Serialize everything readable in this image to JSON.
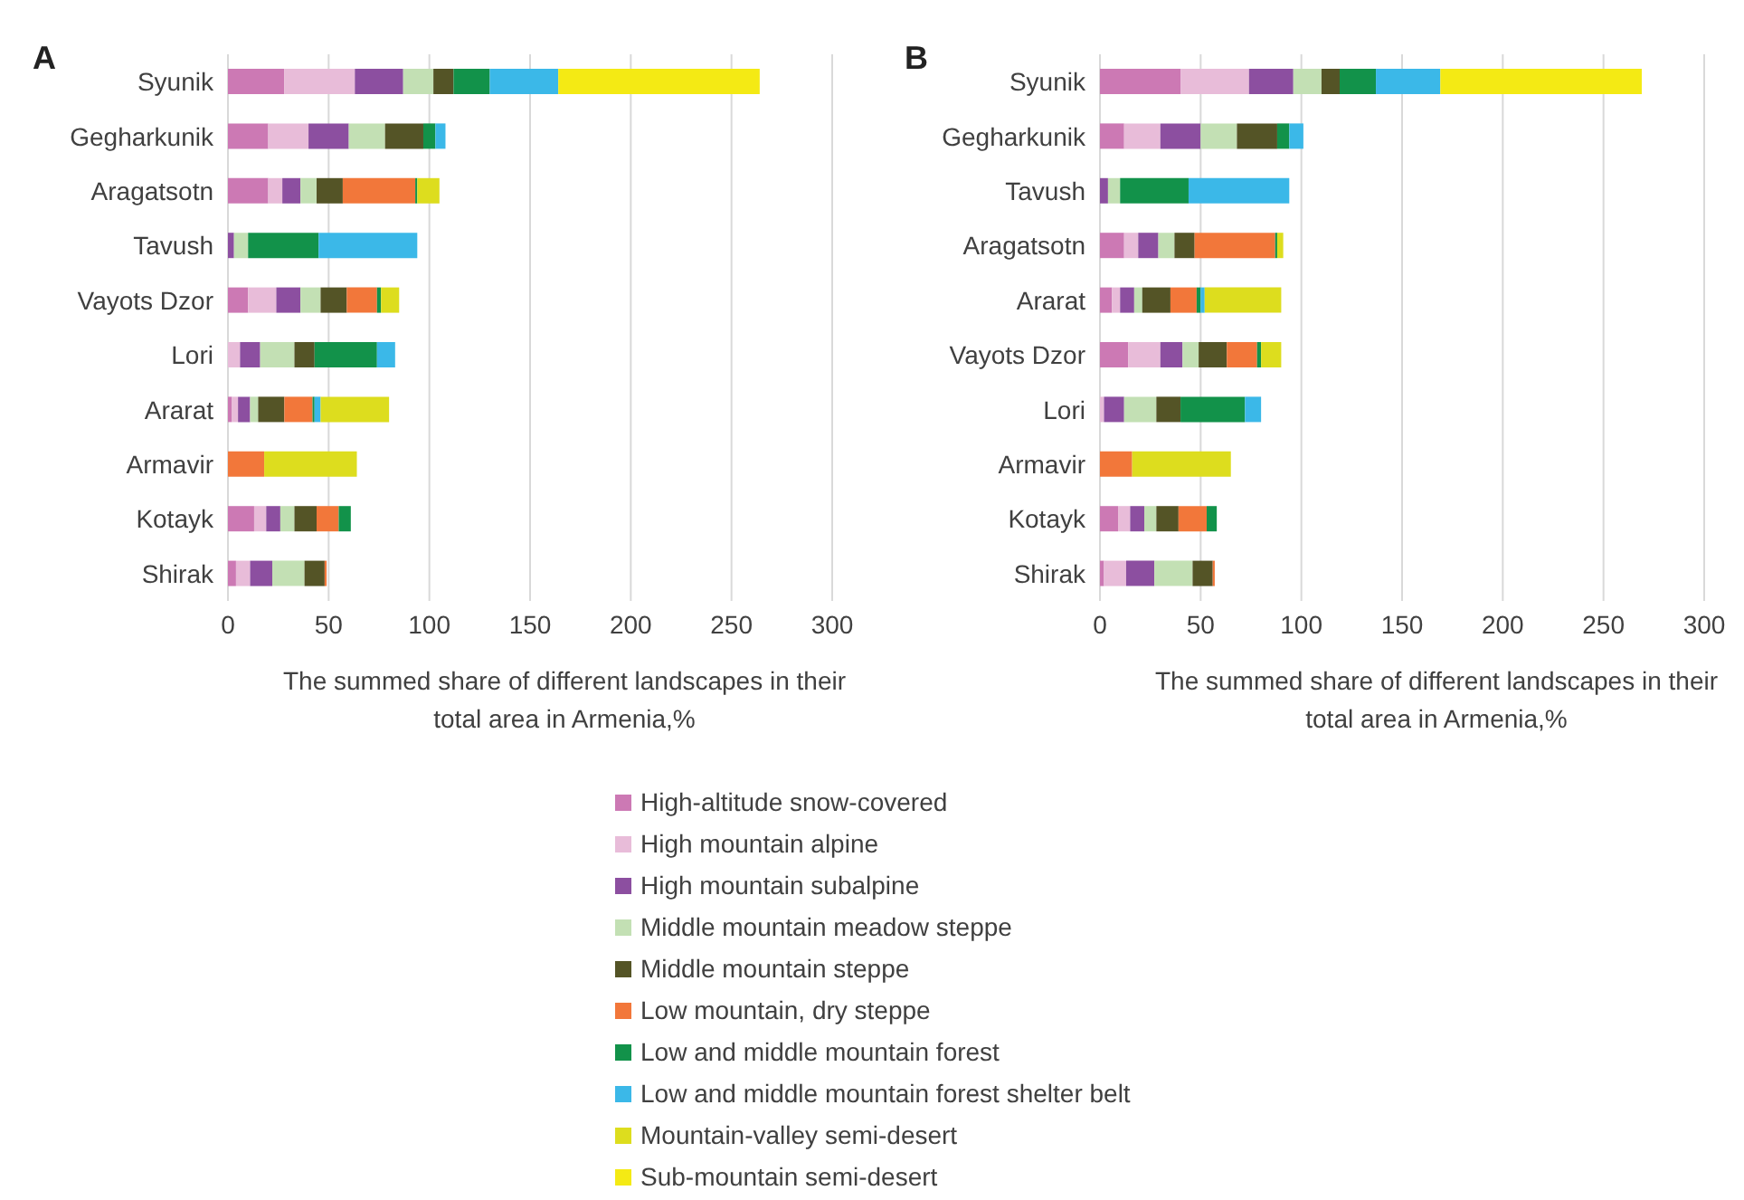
{
  "chart_data": [
    {
      "type": "bar",
      "title": "A",
      "orientation": "horizontal",
      "stacked": true,
      "xlabel": "The summed share of different landscapes in their total area in Armenia,%",
      "categories": [
        "Syunik",
        "Gegharkunik",
        "Aragatsotn",
        "Tavush",
        "Vayots Dzor",
        "Lori",
        "Ararat",
        "Armavir",
        "Kotayk",
        "Shirak"
      ],
      "xlim": [
        0,
        300
      ],
      "xticks": [
        0,
        50,
        100,
        150,
        200,
        250,
        300
      ],
      "grid": "x",
      "legend": "bottom",
      "series": [
        {
          "name": "High-altitude snow-covered",
          "color": "#cc79b4",
          "values": [
            28,
            20,
            20,
            0,
            10,
            0,
            2,
            0,
            13,
            4
          ]
        },
        {
          "name": "High mountain alpine",
          "color": "#e8bcd9",
          "values": [
            35,
            20,
            7,
            0,
            14,
            6,
            3,
            0,
            6,
            7
          ]
        },
        {
          "name": "High mountain subalpine",
          "color": "#8c4fa0",
          "values": [
            24,
            20,
            9,
            3,
            12,
            10,
            6,
            0,
            7,
            11
          ]
        },
        {
          "name": "Middle mountain meadow steppe",
          "color": "#c3e0b4",
          "values": [
            15,
            18,
            8,
            7,
            10,
            17,
            4,
            0,
            7,
            16
          ]
        },
        {
          "name": "Middle mountain steppe",
          "color": "#545426",
          "values": [
            10,
            19,
            13,
            0,
            13,
            10,
            13,
            0,
            11,
            10
          ]
        },
        {
          "name": "Low mountain, dry steppe",
          "color": "#f2773a",
          "values": [
            0,
            0,
            36,
            0,
            15,
            0,
            14,
            18,
            11,
            1
          ]
        },
        {
          "name": "Low and middle mountain forest",
          "color": "#12924a",
          "values": [
            18,
            6,
            1,
            35,
            2,
            31,
            1,
            0,
            6,
            0
          ]
        },
        {
          "name": "Low and middle mountain forest shelter belt",
          "color": "#3bb8e8",
          "values": [
            34,
            5,
            0,
            49,
            0,
            9,
            3,
            0,
            0,
            0
          ]
        },
        {
          "name": "Mountain-valley semi-desert",
          "color": "#dddd1e",
          "values": [
            0,
            0,
            11,
            0,
            9,
            0,
            34,
            46,
            0,
            0
          ]
        },
        {
          "name": "Sub-mountain semi-desert",
          "color": "#f4ea14",
          "values": [
            100,
            0,
            0,
            0,
            0,
            0,
            0,
            0,
            0,
            0
          ]
        }
      ]
    },
    {
      "type": "bar",
      "title": "B",
      "orientation": "horizontal",
      "stacked": true,
      "xlabel": "The summed share of different landscapes in their total area in Armenia,%",
      "categories": [
        "Syunik",
        "Gegharkunik",
        "Tavush",
        "Aragatsotn",
        "Ararat",
        "Vayots Dzor",
        "Lori",
        "Armavir",
        "Kotayk",
        "Shirak"
      ],
      "xlim": [
        0,
        300
      ],
      "xticks": [
        0,
        50,
        100,
        150,
        200,
        250,
        300
      ],
      "grid": "x",
      "series": [
        {
          "color": "#cc79b4",
          "values": [
            40,
            12,
            0,
            12,
            6,
            14,
            0,
            0,
            9,
            2
          ]
        },
        {
          "color": "#e8bcd9",
          "values": [
            34,
            18,
            0,
            7,
            4,
            16,
            2,
            0,
            6,
            11
          ]
        },
        {
          "color": "#8c4fa0",
          "values": [
            22,
            20,
            4,
            10,
            7,
            11,
            10,
            0,
            7,
            14
          ]
        },
        {
          "color": "#c3e0b4",
          "values": [
            14,
            18,
            6,
            8,
            4,
            8,
            16,
            0,
            6,
            19
          ]
        },
        {
          "color": "#545426",
          "values": [
            9,
            20,
            0,
            10,
            14,
            14,
            12,
            0,
            11,
            10
          ]
        },
        {
          "color": "#f2773a",
          "values": [
            0,
            0,
            0,
            40,
            13,
            15,
            0,
            16,
            14,
            1
          ]
        },
        {
          "color": "#12924a",
          "values": [
            18,
            6,
            34,
            1,
            2,
            2,
            32,
            0,
            5,
            0
          ]
        },
        {
          "color": "#3bb8e8",
          "values": [
            32,
            7,
            50,
            0,
            2,
            0,
            8,
            0,
            0,
            0
          ]
        },
        {
          "color": "#dddd1e",
          "values": [
            0,
            0,
            0,
            3,
            38,
            10,
            0,
            49,
            0,
            0
          ]
        },
        {
          "color": "#f4ea14",
          "values": [
            100,
            0,
            0,
            0,
            0,
            0,
            0,
            0,
            0,
            0
          ]
        }
      ]
    }
  ]
}
